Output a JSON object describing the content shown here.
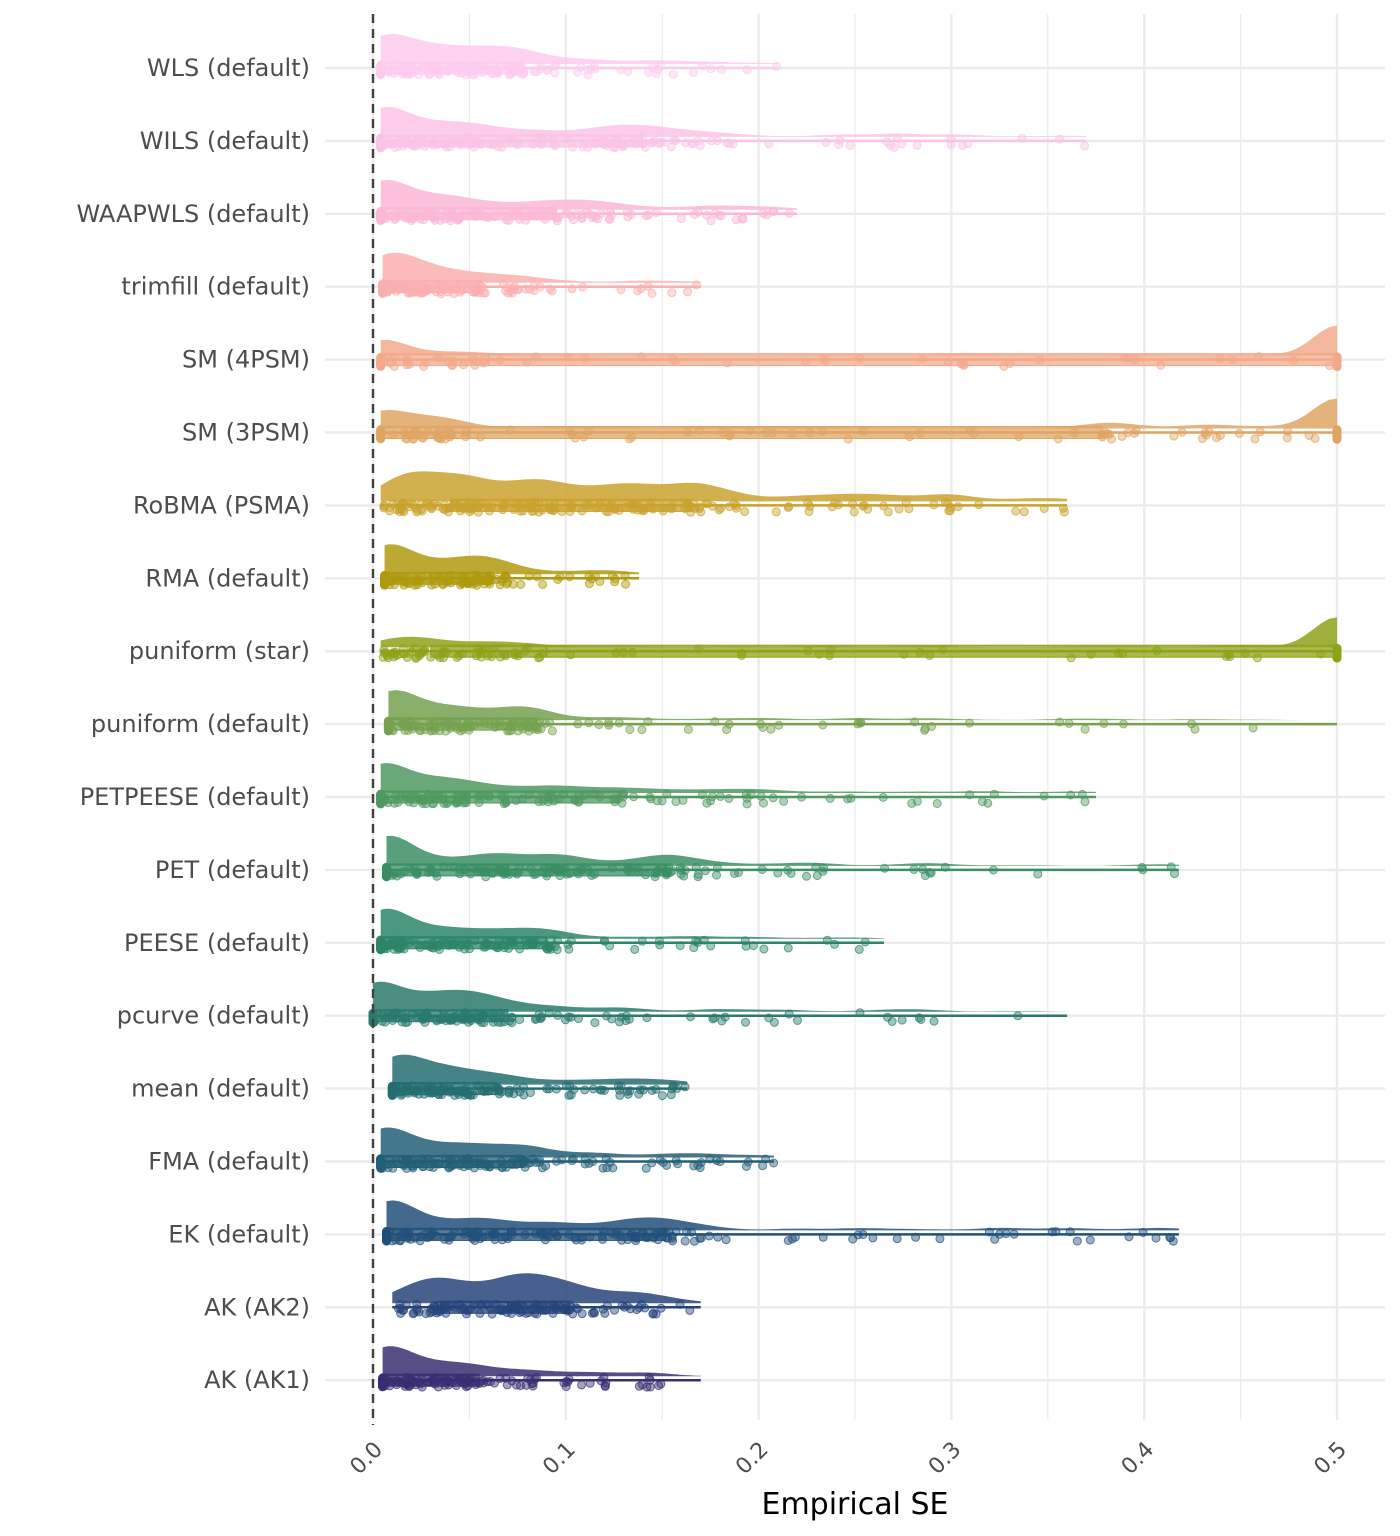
{
  "chart_data": {
    "type": "raincloud",
    "xlabel": "Empirical SE",
    "xlim": [
      0.0,
      0.5
    ],
    "x_ticks": [
      "0.0",
      "0.1",
      "0.2",
      "0.3",
      "0.4",
      "0.5"
    ],
    "reference_line": 0.0,
    "grid": true,
    "legend": "none",
    "categories": [
      "WLS (default)",
      "WILS (default)",
      "WAAPWLS (default)",
      "trimfill (default)",
      "SM (4PSM)",
      "SM (3PSM)",
      "RoBMA (PSMA)",
      "RMA (default)",
      "puniform (star)",
      "puniform (default)",
      "PETPEESE (default)",
      "PET (default)",
      "PEESE (default)",
      "pcurve (default)",
      "mean (default)",
      "FMA (default)",
      "EK (default)",
      "AK (AK2)",
      "AK (AK1)"
    ],
    "series": [
      {
        "label": "WLS (default)",
        "color": "#FDCBEE",
        "min": 0.004,
        "q1": 0.004,
        "median": 0.035,
        "q3": 0.078,
        "max": 0.21,
        "mode": 0.015,
        "count": 160
      },
      {
        "label": "WILS (default)",
        "color": "#FBC3E6",
        "min": 0.004,
        "q1": 0.004,
        "median": 0.05,
        "q3": 0.14,
        "max": 0.37,
        "mode": 0.02,
        "count": 170
      },
      {
        "label": "WAAPWLS (default)",
        "color": "#FBB7D7",
        "min": 0.004,
        "q1": 0.004,
        "median": 0.04,
        "q3": 0.095,
        "max": 0.22,
        "mode": 0.02,
        "count": 160
      },
      {
        "label": "trimfill (default)",
        "color": "#FBAFAF",
        "min": 0.005,
        "q1": 0.005,
        "median": 0.025,
        "q3": 0.055,
        "max": 0.17,
        "mode": 0.012,
        "count": 150
      },
      {
        "label": "SM (4PSM)",
        "color": "#F2A98B",
        "min": 0.004,
        "q1": 0.004,
        "median": 0.06,
        "q3": 0.5,
        "max": 0.5,
        "mode": 0.5,
        "count": 170
      },
      {
        "label": "SM (3PSM)",
        "color": "#DFA564",
        "min": 0.004,
        "q1": 0.004,
        "median": 0.05,
        "q3": 0.378,
        "max": 0.5,
        "mode": 0.5,
        "count": 170
      },
      {
        "label": "RoBMA (PSMA)",
        "color": "#C9A22E",
        "min": 0.004,
        "q1": 0.04,
        "median": 0.09,
        "q3": 0.165,
        "max": 0.36,
        "mode": 0.06,
        "count": 180
      },
      {
        "label": "RMA (default)",
        "color": "#AF9A0E",
        "min": 0.006,
        "q1": 0.006,
        "median": 0.03,
        "q3": 0.06,
        "max": 0.138,
        "mode": 0.015,
        "count": 150
      },
      {
        "label": "puniform (star)",
        "color": "#8FA21A",
        "min": 0.004,
        "q1": 0.03,
        "median": 0.09,
        "q3": 0.5,
        "max": 0.5,
        "mode": 0.5,
        "count": 170
      },
      {
        "label": "puniform (default)",
        "color": "#76A150",
        "min": 0.008,
        "q1": 0.008,
        "median": 0.04,
        "q3": 0.085,
        "max": 0.5,
        "mode": 0.025,
        "count": 170
      },
      {
        "label": "PETPEESE (default)",
        "color": "#509861",
        "min": 0.004,
        "q1": 0.004,
        "median": 0.05,
        "q3": 0.128,
        "max": 0.375,
        "mode": 0.02,
        "count": 180
      },
      {
        "label": "PET (default)",
        "color": "#3A8F64",
        "min": 0.007,
        "q1": 0.007,
        "median": 0.07,
        "q3": 0.152,
        "max": 0.418,
        "mode": 0.02,
        "count": 190
      },
      {
        "label": "PEESE (default)",
        "color": "#2C8569",
        "min": 0.004,
        "q1": 0.004,
        "median": 0.04,
        "q3": 0.09,
        "max": 0.265,
        "mode": 0.02,
        "count": 170
      },
      {
        "label": "pcurve (default)",
        "color": "#2A7A6C",
        "min": 0.0,
        "q1": 0.0,
        "median": 0.035,
        "q3": 0.07,
        "max": 0.36,
        "mode": 0.02,
        "count": 170
      },
      {
        "label": "mean (default)",
        "color": "#256D72",
        "min": 0.01,
        "q1": 0.01,
        "median": 0.035,
        "q3": 0.065,
        "max": 0.163,
        "mode": 0.015,
        "count": 160
      },
      {
        "label": "FMA (default)",
        "color": "#235F78",
        "min": 0.004,
        "q1": 0.004,
        "median": 0.04,
        "q3": 0.078,
        "max": 0.208,
        "mode": 0.015,
        "count": 170
      },
      {
        "label": "EK (default)",
        "color": "#22507A",
        "min": 0.007,
        "q1": 0.007,
        "median": 0.07,
        "q3": 0.152,
        "max": 0.418,
        "mode": 0.02,
        "count": 190
      },
      {
        "label": "AK (AK2)",
        "color": "#27447A",
        "min": 0.01,
        "q1": 0.035,
        "median": 0.07,
        "q3": 0.102,
        "max": 0.17,
        "mode": 0.07,
        "count": 120
      },
      {
        "label": "AK (AK1)",
        "color": "#392E72",
        "min": 0.005,
        "q1": 0.005,
        "median": 0.03,
        "q3": 0.055,
        "max": 0.17,
        "mode": 0.015,
        "count": 150
      }
    ]
  }
}
